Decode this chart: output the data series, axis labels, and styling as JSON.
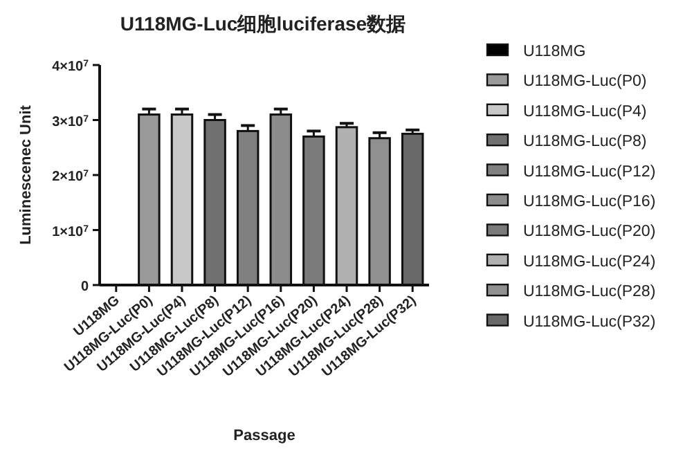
{
  "chart_data": {
    "type": "bar",
    "title": "U118MG-Luc细胞luciferase数据",
    "xlabel": "Passage",
    "ylabel": "Luminescenec Unit",
    "categories": [
      "U118MG",
      "U118MG-Luc(P0)",
      "U118MG-Luc(P4)",
      "U118MG-Luc(P8)",
      "U118MG-Luc(P12)",
      "U118MG-Luc(P16)",
      "U118MG-Luc(P20)",
      "U118MG-Luc(P24)",
      "U118MG-Luc(P28)",
      "U118MG-Luc(P32)"
    ],
    "stacked": true,
    "series": [
      {
        "name": "U118MG",
        "color": "#000000",
        "values": [
          0,
          null,
          null,
          null,
          null,
          null,
          null,
          null,
          null,
          null
        ]
      },
      {
        "name": "U118MG-Luc(P0)",
        "color": "#9a9a9a",
        "values": [
          null,
          31000000,
          null,
          null,
          null,
          null,
          null,
          null,
          null,
          null
        ],
        "errors": [
          null,
          1000000,
          null,
          null,
          null,
          null,
          null,
          null,
          null,
          null
        ]
      },
      {
        "name": "U118MG-Luc(P4)",
        "color": "#c8c8c8",
        "values": [
          null,
          null,
          31000000,
          null,
          null,
          null,
          null,
          null,
          null,
          null
        ],
        "errors": [
          null,
          null,
          1000000,
          null,
          null,
          null,
          null,
          null,
          null,
          null
        ]
      },
      {
        "name": "U118MG-Luc(P8)",
        "color": "#707070",
        "values": [
          null,
          null,
          null,
          30000000,
          null,
          null,
          null,
          null,
          null,
          null
        ],
        "errors": [
          null,
          null,
          null,
          1000000,
          null,
          null,
          null,
          null,
          null,
          null
        ]
      },
      {
        "name": "U118MG-Luc(P12)",
        "color": "#808080",
        "values": [
          null,
          null,
          null,
          null,
          28000000,
          null,
          null,
          null,
          null,
          null
        ],
        "errors": [
          null,
          null,
          null,
          null,
          1000000,
          null,
          null,
          null,
          null,
          null
        ]
      },
      {
        "name": "U118MG-Luc(P16)",
        "color": "#8c8c8c",
        "values": [
          null,
          null,
          null,
          null,
          null,
          31000000,
          null,
          null,
          null,
          null
        ],
        "errors": [
          null,
          null,
          null,
          null,
          null,
          1000000,
          null,
          null,
          null,
          null
        ]
      },
      {
        "name": "U118MG-Luc(P20)",
        "color": "#7a7a7a",
        "values": [
          null,
          null,
          null,
          null,
          null,
          null,
          27000000,
          null,
          null,
          null
        ],
        "errors": [
          null,
          null,
          null,
          null,
          null,
          null,
          1000000,
          null,
          null,
          null
        ]
      },
      {
        "name": "U118MG-Luc(P24)",
        "color": "#b0b0b0",
        "values": [
          null,
          null,
          null,
          null,
          null,
          null,
          null,
          28700000,
          null,
          null
        ],
        "errors": [
          null,
          null,
          null,
          null,
          null,
          null,
          null,
          700000,
          null,
          null
        ]
      },
      {
        "name": "U118MG-Luc(P28)",
        "color": "#909090",
        "values": [
          null,
          null,
          null,
          null,
          null,
          null,
          null,
          null,
          26700000,
          null
        ],
        "errors": [
          null,
          null,
          null,
          null,
          null,
          null,
          null,
          null,
          1000000,
          null
        ]
      },
      {
        "name": "U118MG-Luc(P32)",
        "color": "#686868",
        "values": [
          null,
          null,
          null,
          null,
          null,
          null,
          null,
          null,
          null,
          27500000
        ],
        "errors": [
          null,
          null,
          null,
          null,
          null,
          null,
          null,
          null,
          null,
          700000
        ]
      }
    ],
    "ylim": [
      0,
      40000000
    ],
    "yticks": [
      0,
      {
        "value": 10000000,
        "label": "1×10$^{7}$"
      },
      {
        "value": 20000000,
        "label": "2×10$^{7}$"
      },
      {
        "value": 30000000,
        "label": "3×10$^{7}$"
      },
      {
        "value": 40000000,
        "label": "4×10$^{7}$"
      }
    ],
    "grid": false,
    "legend": "right"
  }
}
